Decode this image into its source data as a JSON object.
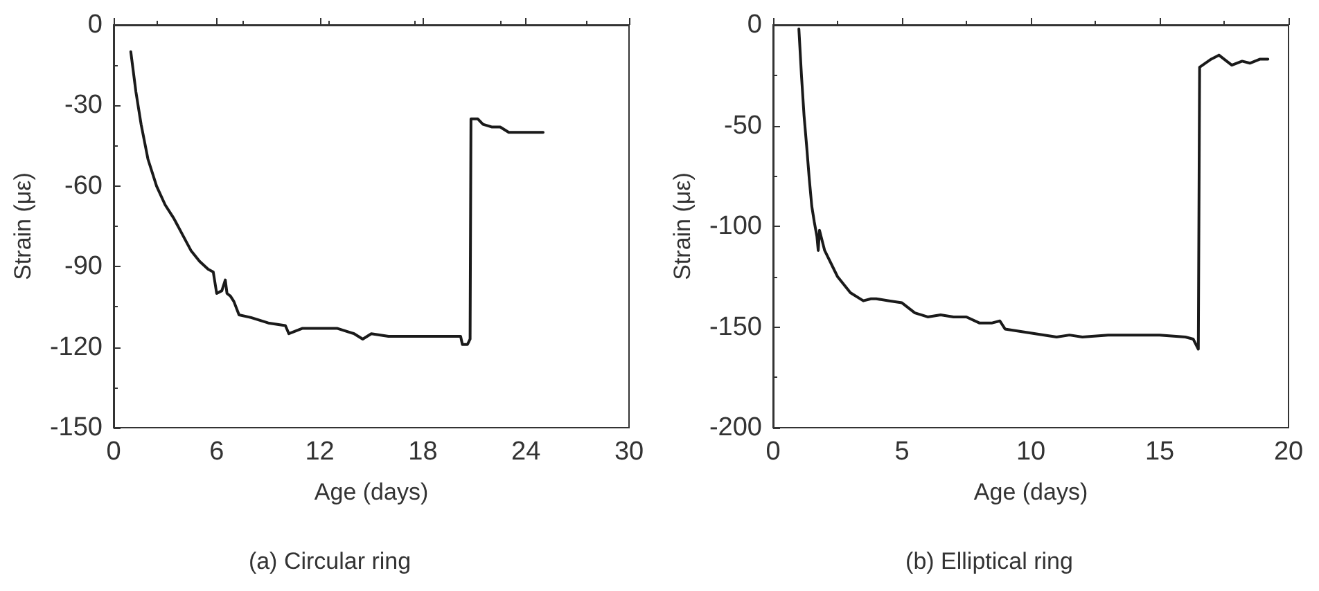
{
  "chart_data": [
    {
      "type": "line",
      "title": "(a) Circular ring",
      "xlabel": "Age (days)",
      "ylabel": "Strain (με)",
      "xlim": [
        0,
        30
      ],
      "xticks": [
        0,
        6,
        12,
        18,
        24,
        30
      ],
      "ylim": [
        -150,
        0
      ],
      "yticks": [
        -150,
        -120,
        -90,
        -60,
        -30,
        0
      ],
      "grid": false,
      "marker": "none",
      "line_style": "solid",
      "series": [
        {
          "color": "#1a1a1a",
          "x": [
            1.0,
            1.3,
            1.6,
            2,
            2.5,
            3,
            3.5,
            4,
            4.5,
            5,
            5.5,
            5.8,
            6.0,
            6.3,
            6.5,
            6.6,
            6.8,
            7.0,
            7.3,
            8,
            9,
            10,
            10.2,
            11,
            12,
            13,
            14,
            14.5,
            15,
            16,
            17,
            18,
            19,
            20.2,
            20.3,
            20.6,
            20.75,
            20.8,
            21.2,
            21.5,
            22,
            22.5,
            23,
            24,
            25
          ],
          "values": [
            -10,
            -25,
            -37,
            -50,
            -60,
            -67,
            -72,
            -78,
            -84,
            -88,
            -91,
            -92,
            -100,
            -99,
            -95,
            -100,
            -101,
            -103,
            -108,
            -109,
            -111,
            -112,
            -115,
            -113,
            -113,
            -113,
            -115,
            -117,
            -115,
            -116,
            -116,
            -116,
            -116,
            -116,
            -119,
            -119,
            -117,
            -35,
            -35,
            -37,
            -38,
            -38,
            -40,
            -40,
            -40
          ]
        }
      ]
    },
    {
      "type": "line",
      "title": "(b) Elliptical ring",
      "xlabel": "Age (days)",
      "ylabel": "Strain (με)",
      "xlim": [
        0,
        20
      ],
      "xticks": [
        0,
        5,
        10,
        15,
        20
      ],
      "ylim": [
        -200,
        0
      ],
      "yticks": [
        -200,
        -150,
        -100,
        -50,
        0
      ],
      "grid": false,
      "marker": "none",
      "line_style": "solid",
      "series": [
        {
          "color": "#1a1a1a",
          "x": [
            1.0,
            1.1,
            1.2,
            1.3,
            1.4,
            1.5,
            1.6,
            1.7,
            1.75,
            1.8,
            2,
            2.5,
            3,
            3.5,
            3.8,
            4,
            4.5,
            5,
            5.5,
            6,
            6.5,
            7,
            7.5,
            8,
            8.5,
            8.8,
            9,
            10,
            11,
            11.5,
            12,
            13,
            14,
            15,
            16,
            16.3,
            16.5,
            16.55,
            17,
            17.3,
            17.6,
            17.8,
            18.2,
            18.5,
            18.9,
            19.2
          ],
          "values": [
            -2,
            -25,
            -45,
            -60,
            -76,
            -90,
            -98,
            -105,
            -112,
            -102,
            -112,
            -125,
            -133,
            -137,
            -136,
            -136,
            -137,
            -138,
            -143,
            -145,
            -144,
            -145,
            -145,
            -148,
            -148,
            -147,
            -151,
            -153,
            -155,
            -154,
            -155,
            -154,
            -154,
            -154,
            -155,
            -156,
            -161,
            -21,
            -17,
            -15,
            -18,
            -20,
            -18,
            -19,
            -17,
            -17
          ]
        }
      ]
    }
  ]
}
